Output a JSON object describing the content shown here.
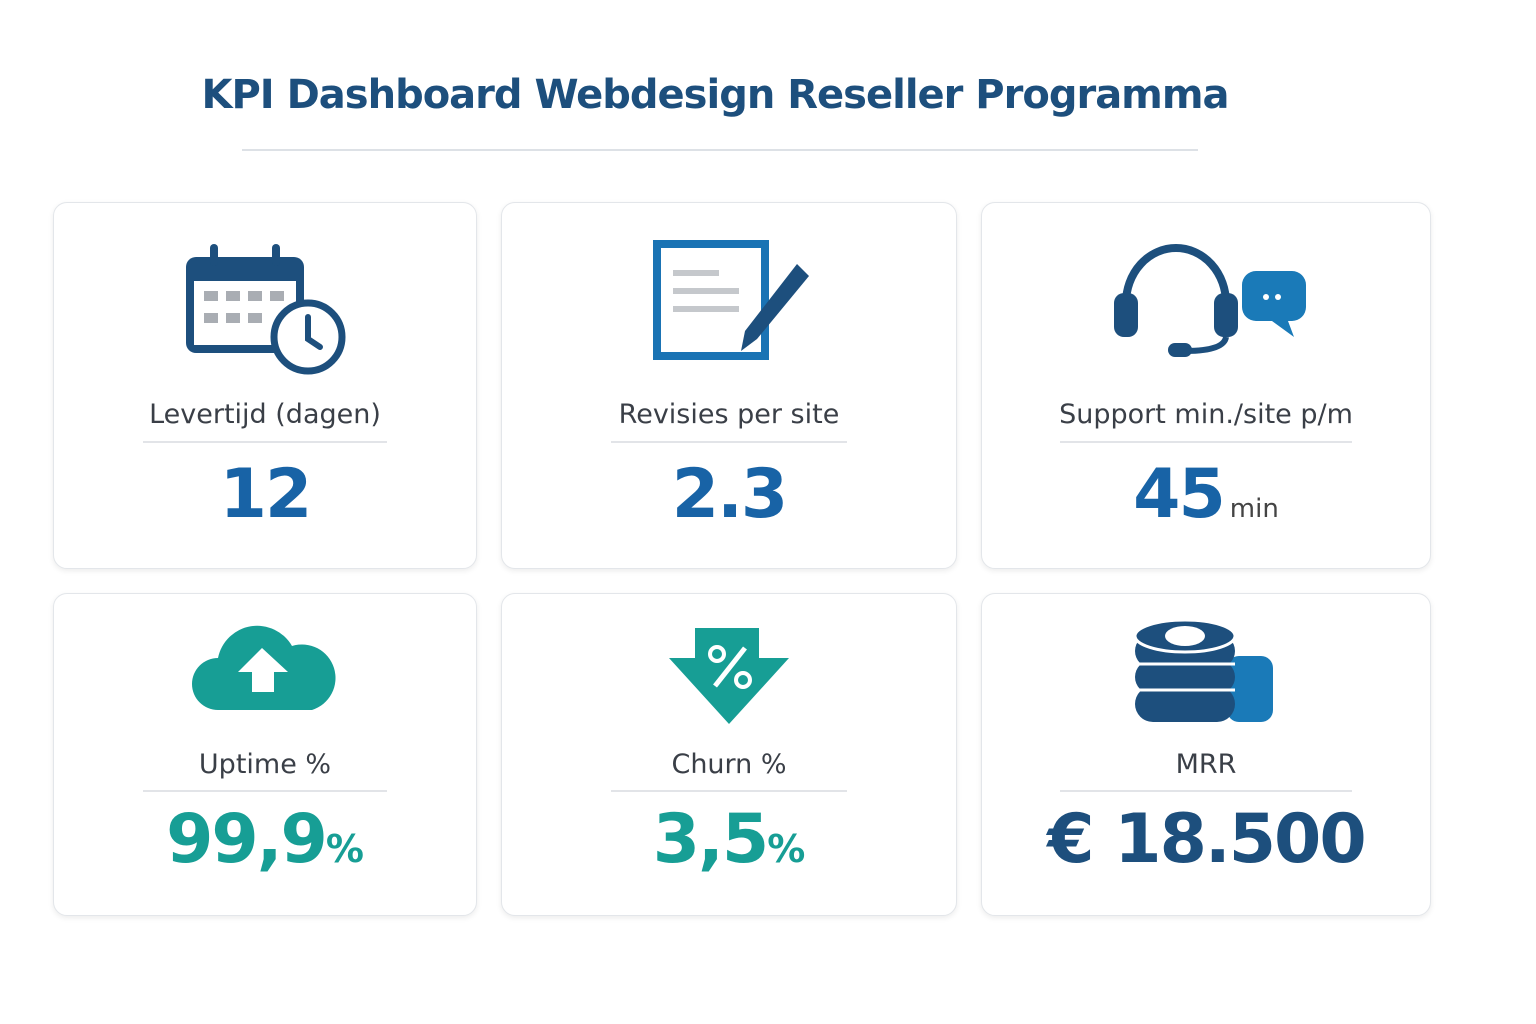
{
  "header": {
    "title": "KPI Dashboard Webdesign Reseller Programma"
  },
  "cards": [
    {
      "label": "Levertijd (dagen)",
      "value": "12"
    },
    {
      "label": "Revisies per site",
      "value": "2.3"
    },
    {
      "label": "Support min./site p/m",
      "value": "45",
      "unit": "min"
    },
    {
      "label": "Uptime %",
      "value": "99,9",
      "unit": "%"
    },
    {
      "label": "Churn %",
      "value": "3,5",
      "unit": "%"
    },
    {
      "label": "MRR",
      "value": "€ 18.500"
    }
  ]
}
